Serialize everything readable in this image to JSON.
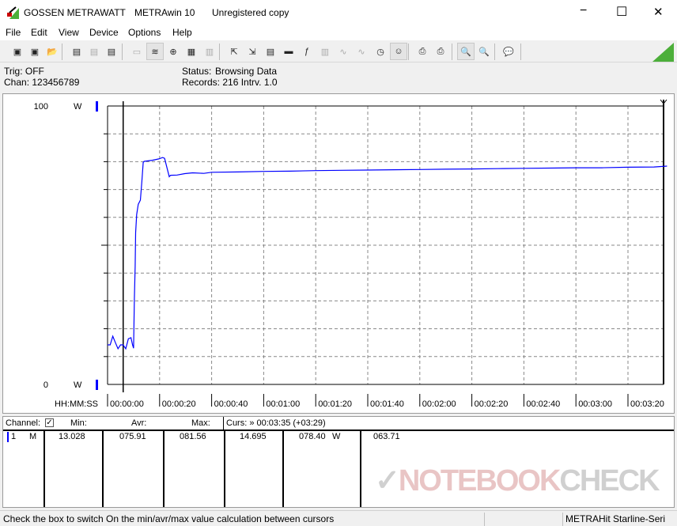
{
  "window": {
    "brand": "GOSSEN METRAWATT",
    "app": "METRAwin 10",
    "license": "Unregistered copy",
    "controls": {
      "minimize": "−",
      "maximize": "☐",
      "close": "✕"
    }
  },
  "menu": [
    "File",
    "Edit",
    "View",
    "Device",
    "Options",
    "Help"
  ],
  "toolbar": {
    "icons": [
      "save-icon",
      "save-as-icon",
      "open-icon",
      "device-read-icon",
      "device-memory-icon",
      "device-m-icon",
      "display-icon",
      "waveform-icon",
      "crosshair-icon",
      "table-icon",
      "bars-icon",
      "export-icon",
      "import-icon",
      "list-icon",
      "monitor-icon",
      "function-icon",
      "channel-icon",
      "signal-icon",
      "multi-signal-icon",
      "timer-icon",
      "trigger-icon",
      "print-preview-icon",
      "print-icon",
      "zoom-wave-icon",
      "zoom-peak-icon",
      "comment-icon"
    ],
    "accent": "#4caf3a"
  },
  "info": {
    "trig": "Trig: OFF",
    "chan": "Chan:  123456789",
    "status_label": "Status:",
    "status_value": "Browsing Data",
    "records": "Records: 216  Intrv. 1.0"
  },
  "chart_data": {
    "type": "line",
    "ylabel_unit": "W",
    "ylim": [
      0,
      100
    ],
    "ytick_labels": [
      "100",
      "0"
    ],
    "xlim_seconds": [
      0,
      213
    ],
    "xaxis_label": "HH:MM:SS",
    "xtick_labels": [
      "00:00:00",
      "00:00:20",
      "00:00:40",
      "00:01:00",
      "00:01:20",
      "00:01:40",
      "00:02:00",
      "00:02:20",
      "00:02:40",
      "00:03:00",
      "00:03:20"
    ],
    "grid": true,
    "line_color": "#0000ff",
    "cursor_seconds": 6,
    "series": [
      {
        "t": [
          0,
          1,
          2,
          3,
          4,
          5,
          6,
          7,
          8,
          9,
          9.6,
          10,
          10.3,
          10.6,
          10.8,
          11.2,
          11.8,
          12.6,
          13.2,
          13.7,
          14.1,
          17.2,
          19.7,
          21.2,
          21.9,
          23.7,
          24.2,
          26.7,
          29.7,
          32.7,
          37,
          40,
          50,
          60,
          70,
          80,
          90,
          100,
          110,
          120,
          130,
          140,
          150,
          160,
          170,
          180,
          190,
          200,
          210,
          215
        ],
        "v": [
          14.2,
          14.2,
          17.3,
          15,
          12.8,
          14.2,
          14.2,
          12.8,
          16.4,
          16.8,
          14.2,
          13.0,
          30.8,
          42.4,
          54.5,
          61,
          64.7,
          66.2,
          73,
          79.8,
          80.1,
          80.5,
          81,
          81.5,
          81.2,
          74.6,
          75.1,
          75.2,
          75.7,
          76.0,
          75.8,
          76.2,
          76.3,
          76.5,
          76.6,
          76.8,
          76.9,
          77.0,
          77.1,
          77.2,
          77.3,
          77.4,
          77.5,
          77.6,
          77.7,
          77.8,
          77.8,
          78.0,
          78.1,
          78.4
        ]
      }
    ]
  },
  "table": {
    "headers": {
      "channel": "Channel:",
      "min": "Min:",
      "avr": "Avr:",
      "max": "Max:",
      "curs": "Curs: » 00:03:35 (+03:29)"
    },
    "checkbox_checked": true,
    "row": {
      "num": "1",
      "mode": "M",
      "min": "13.028",
      "avr": "075.91",
      "max": "081.56",
      "c1": "14.695",
      "c2": "078.40",
      "unit": "W",
      "diff": "063.71"
    },
    "channel_color": "#0000ff"
  },
  "watermark": {
    "part1": "NOTEBOOK",
    "part2": "CHECK"
  },
  "statusbar": {
    "hint": "Check the box to switch On the min/avr/max value calculation between cursors",
    "device": "METRAHit Starline-Seri"
  }
}
